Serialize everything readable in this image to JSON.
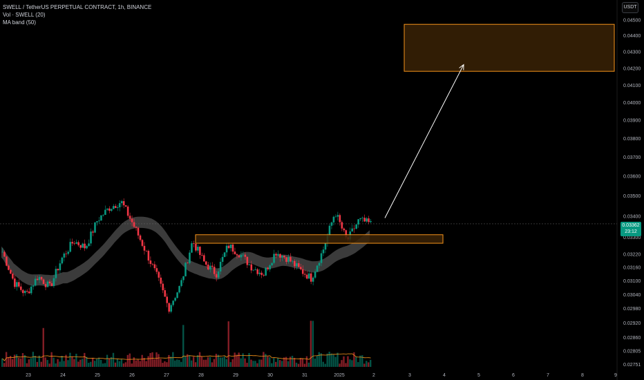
{
  "header": {
    "symbol_line": "SWELL / TetherUS PERPETUAL CONTRACT, 1h, BINANCE",
    "indicator_vol": "Vol · SWELL (20)",
    "indicator_ma": "MA band (50)"
  },
  "currency_button": "USDT",
  "current_price": {
    "value": "0.03362",
    "countdown": "23:12"
  },
  "colors": {
    "background": "#000000",
    "up": "#089981",
    "down": "#f23645",
    "zone_stroke": "#f7931a",
    "zone_fill": "#3a2206",
    "ma_band": "#6b6b6b",
    "vol_ma": "#f7931a",
    "price_line": "#555555"
  },
  "chart_data": {
    "type": "candlestick",
    "title": "SWELL / TetherUS PERPETUAL CONTRACT, 1h, BINANCE",
    "y_axis": {
      "ticks": [
        "0.04500",
        "0.04400",
        "0.04300",
        "0.04200",
        "0.04100",
        "0.04000",
        "0.03900",
        "0.03800",
        "0.03700",
        "0.03600",
        "0.03500",
        "0.03400",
        "0.03300",
        "0.03220",
        "0.03160",
        "0.03100",
        "0.03040",
        "0.02980",
        "0.02920",
        "0.02860",
        "0.02805",
        "0.02751"
      ],
      "scale": "log",
      "range": [
        0.0273,
        0.0456
      ]
    },
    "x_axis": {
      "ticks": [
        "23",
        "24",
        "25",
        "26",
        "27",
        "28",
        "29",
        "30",
        "31",
        "2025",
        "2",
        "3",
        "4",
        "5",
        "6",
        "7",
        "8",
        "9"
      ]
    },
    "price_path": [
      [
        "23",
        0.0323
      ],
      [
        "23",
        0.0309
      ],
      [
        "23",
        0.0304
      ],
      [
        "24",
        0.0312
      ],
      [
        "24",
        0.0307
      ],
      [
        "24",
        0.032
      ],
      [
        "24",
        0.0328
      ],
      [
        "25",
        0.0325
      ],
      [
        "25",
        0.0338
      ],
      [
        "25",
        0.0344
      ],
      [
        "26",
        0.0347
      ],
      [
        "26",
        0.0336
      ],
      [
        "26",
        0.0324
      ],
      [
        "27",
        0.0312
      ],
      [
        "27",
        0.0298
      ],
      [
        "27",
        0.0308
      ],
      [
        "28",
        0.0328
      ],
      [
        "28",
        0.0318
      ],
      [
        "28",
        0.0313
      ],
      [
        "29",
        0.0326
      ],
      [
        "29",
        0.0322
      ],
      [
        "30",
        0.0316
      ],
      [
        "30",
        0.0313
      ],
      [
        "30",
        0.0323
      ],
      [
        "31",
        0.032
      ],
      [
        "31",
        0.0315
      ],
      [
        "31",
        0.0311
      ],
      [
        "2025",
        0.0324
      ],
      [
        "2025",
        0.0342
      ],
      [
        "2025",
        0.0328
      ],
      [
        "2",
        0.0338
      ],
      [
        "2",
        0.03362
      ]
    ],
    "volume_ma_label": "Vol · SWELL (20)",
    "band_label": "MA band (50)",
    "current_price": 0.03362,
    "annotations": [
      {
        "type": "zone",
        "from_x": "28",
        "to_x": "4",
        "y_top": 0.0331,
        "y_bottom": 0.0327
      },
      {
        "type": "zone",
        "from_x": "3",
        "to_x": "9",
        "y_top": 0.0447,
        "y_bottom": 0.0418
      },
      {
        "type": "arrow",
        "from": [
          "2",
          0.0339
        ],
        "to": [
          "5",
          0.0422
        ]
      }
    ]
  }
}
